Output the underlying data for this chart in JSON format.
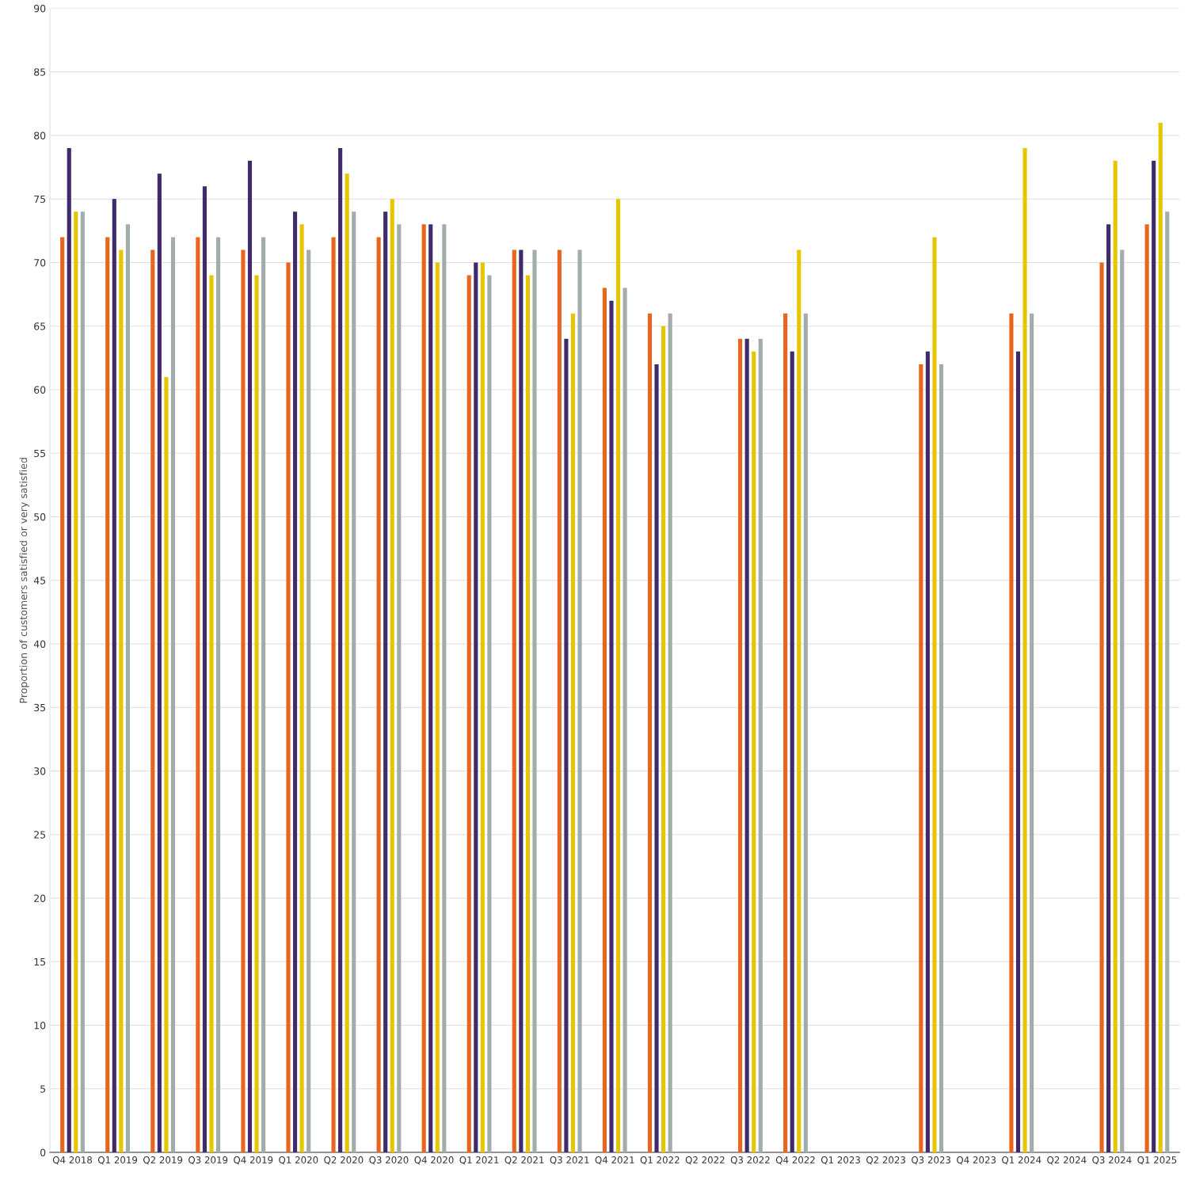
{
  "chart_data": {
    "type": "bar",
    "ylabel": "Proportion of customers satisfied or very satisfied",
    "categories": [
      "Q4 2018",
      "Q1 2019",
      "Q2 2019",
      "Q3 2019",
      "Q4 2019",
      "Q1 2020",
      "Q2 2020",
      "Q3 2020",
      "Q4 2020",
      "Q1 2021",
      "Q2 2021",
      "Q3 2021",
      "Q4 2021",
      "Q1 2022",
      "Q2 2022",
      "Q3 2022",
      "Q4 2022",
      "Q1 2023",
      "Q2 2023",
      "Q3 2023",
      "Q4 2023",
      "Q1 2024",
      "Q2 2024",
      "Q3 2024",
      "Q1 2025"
    ],
    "series": [
      {
        "color": "#e8651d",
        "values": [
          72,
          72,
          71,
          72,
          71,
          70,
          72,
          72,
          73,
          69,
          71,
          71,
          68,
          66,
          null,
          64,
          66,
          null,
          null,
          62,
          null,
          66,
          null,
          70,
          73
        ]
      },
      {
        "color": "#3f2a6b",
        "values": [
          79,
          75,
          77,
          76,
          78,
          74,
          79,
          74,
          73,
          70,
          71,
          64,
          67,
          62,
          null,
          64,
          63,
          null,
          null,
          63,
          null,
          63,
          null,
          73,
          78
        ]
      },
      {
        "color": "#e6c600",
        "values": [
          74,
          71,
          61,
          69,
          69,
          73,
          77,
          75,
          70,
          70,
          69,
          66,
          75,
          65,
          null,
          63,
          71,
          null,
          null,
          72,
          null,
          79,
          null,
          78,
          81
        ]
      },
      {
        "color": "#a2adab",
        "values": [
          74,
          73,
          72,
          72,
          72,
          71,
          74,
          73,
          73,
          69,
          71,
          71,
          68,
          66,
          null,
          64,
          66,
          null,
          null,
          62,
          null,
          66,
          null,
          71,
          74
        ]
      }
    ],
    "ylim": [
      0,
      90
    ],
    "yticks": [
      0,
      5,
      10,
      15,
      20,
      25,
      30,
      35,
      40,
      45,
      50,
      55,
      60,
      65,
      70,
      75,
      80,
      85,
      90
    ],
    "grid": "y"
  }
}
